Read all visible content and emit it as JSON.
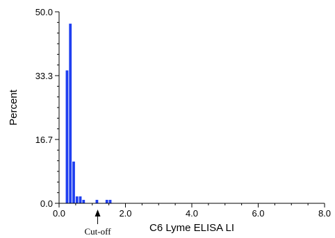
{
  "chart_data": {
    "type": "bar",
    "title": "",
    "xlabel": "C6 Lyme ELISA LI",
    "ylabel": "Percent",
    "xlim": [
      0.0,
      8.0
    ],
    "ylim": [
      0.0,
      50.0
    ],
    "xticks": [
      "0.0",
      "2.0",
      "4.0",
      "6.0",
      "8.0"
    ],
    "yticks": [
      "0.0",
      "16.7",
      "33.3",
      "50.0"
    ],
    "bin_width": 0.1,
    "x": [
      0.2,
      0.3,
      0.4,
      0.5,
      0.6,
      0.7,
      1.1,
      1.4,
      1.5
    ],
    "values": [
      34.7,
      46.9,
      10.9,
      1.8,
      1.8,
      0.9,
      0.9,
      0.9,
      0.9
    ],
    "bar_color": "#1f3ff0",
    "grid": false,
    "annotations": [
      {
        "text": "Cut-off",
        "x": 1.1,
        "arrow": "up"
      }
    ]
  }
}
